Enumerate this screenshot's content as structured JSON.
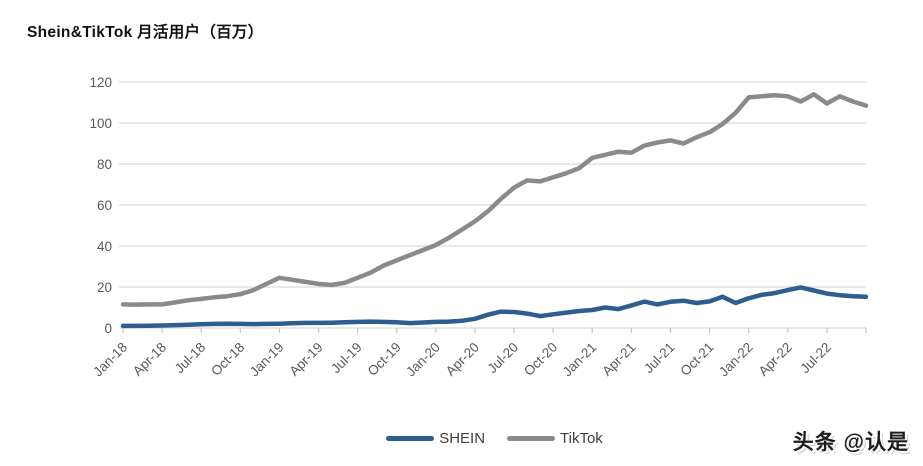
{
  "title": "Shein&TikTok 月活用户（百万）",
  "watermark": "头条 @认是",
  "legend": [
    {
      "label": "SHEIN",
      "color": "#2E5E90"
    },
    {
      "label": "TikTok",
      "color": "#8A8A8A"
    }
  ],
  "chart_data": {
    "type": "line",
    "title": "Shein&TikTok 月活用户（百万）",
    "xlabel": "",
    "ylabel": "",
    "ylim": [
      0,
      120
    ],
    "y_ticks": [
      0,
      20,
      40,
      60,
      80,
      100,
      120
    ],
    "grid": "horizontal",
    "legend_position": "bottom-center",
    "colors": {
      "grid": "#D9D9D9",
      "axis_tick": "#C6C6C6",
      "tick_label": "#595959"
    },
    "categories": [
      "Jan-18",
      "Feb-18",
      "Mar-18",
      "Apr-18",
      "May-18",
      "Jun-18",
      "Jul-18",
      "Aug-18",
      "Sep-18",
      "Oct-18",
      "Nov-18",
      "Dec-18",
      "Jan-19",
      "Feb-19",
      "Mar-19",
      "Apr-19",
      "May-19",
      "Jun-19",
      "Jul-19",
      "Aug-19",
      "Sep-19",
      "Oct-19",
      "Nov-19",
      "Dec-19",
      "Jan-20",
      "Feb-20",
      "Mar-20",
      "Apr-20",
      "May-20",
      "Jun-20",
      "Jul-20",
      "Aug-20",
      "Sep-20",
      "Oct-20",
      "Nov-20",
      "Dec-20",
      "Jan-21",
      "Feb-21",
      "Mar-21",
      "Apr-21",
      "May-21",
      "Jun-21",
      "Jul-21",
      "Aug-21",
      "Sep-21",
      "Oct-21",
      "Nov-21",
      "Dec-21",
      "Jan-22",
      "Feb-22",
      "Mar-22",
      "Apr-22",
      "May-22",
      "Jun-22",
      "Jul-22",
      "Aug-22",
      "Sep-22",
      "Oct-22"
    ],
    "x_tick_labels": [
      "Jan-18",
      "Apr-18",
      "Jul-18",
      "Oct-18",
      "Jan-19",
      "Apr-19",
      "Jul-19",
      "Oct-19",
      "Jan-20",
      "Apr-20",
      "Jul-20",
      "Oct-20",
      "Jan-21",
      "Apr-21",
      "Jul-21",
      "Oct-21",
      "Jan-22",
      "Apr-22",
      "Jul-22"
    ],
    "series": [
      {
        "name": "SHEIN",
        "color": "#2E5E90",
        "values": [
          1.0,
          1.0,
          1.1,
          1.2,
          1.4,
          1.6,
          1.8,
          2.0,
          2.1,
          2.0,
          1.9,
          2.0,
          2.1,
          2.3,
          2.5,
          2.5,
          2.6,
          2.8,
          3.0,
          3.1,
          3.0,
          2.8,
          2.4,
          2.7,
          3.0,
          3.1,
          3.5,
          4.5,
          6.5,
          8.0,
          7.8,
          7.0,
          5.8,
          6.7,
          7.5,
          8.3,
          8.8,
          10.0,
          9.2,
          11.0,
          12.9,
          11.5,
          12.8,
          13.3,
          12.2,
          13.0,
          15.2,
          12.2,
          14.5,
          16.2,
          17.0,
          18.5,
          19.8,
          18.3,
          16.8,
          16.0,
          15.5,
          15.2
        ]
      },
      {
        "name": "TikTok",
        "color": "#8A8A8A",
        "values": [
          11.5,
          11.4,
          11.5,
          11.5,
          12.5,
          13.5,
          14.2,
          15.0,
          15.5,
          16.5,
          18.5,
          21.5,
          24.5,
          23.5,
          22.5,
          21.5,
          21.0,
          22.0,
          24.5,
          27.0,
          30.5,
          33.0,
          35.5,
          38.0,
          40.5,
          44.0,
          48.0,
          52.0,
          57.0,
          63.0,
          68.5,
          72.0,
          71.5,
          73.5,
          75.5,
          78.0,
          83.0,
          84.5,
          86.0,
          85.5,
          89.0,
          90.5,
          91.5,
          90.0,
          93.0,
          95.5,
          99.5,
          105.0,
          112.5,
          113.0,
          113.5,
          113.0,
          110.5,
          114.0,
          109.5,
          113.0,
          110.5,
          108.5
        ]
      }
    ]
  }
}
